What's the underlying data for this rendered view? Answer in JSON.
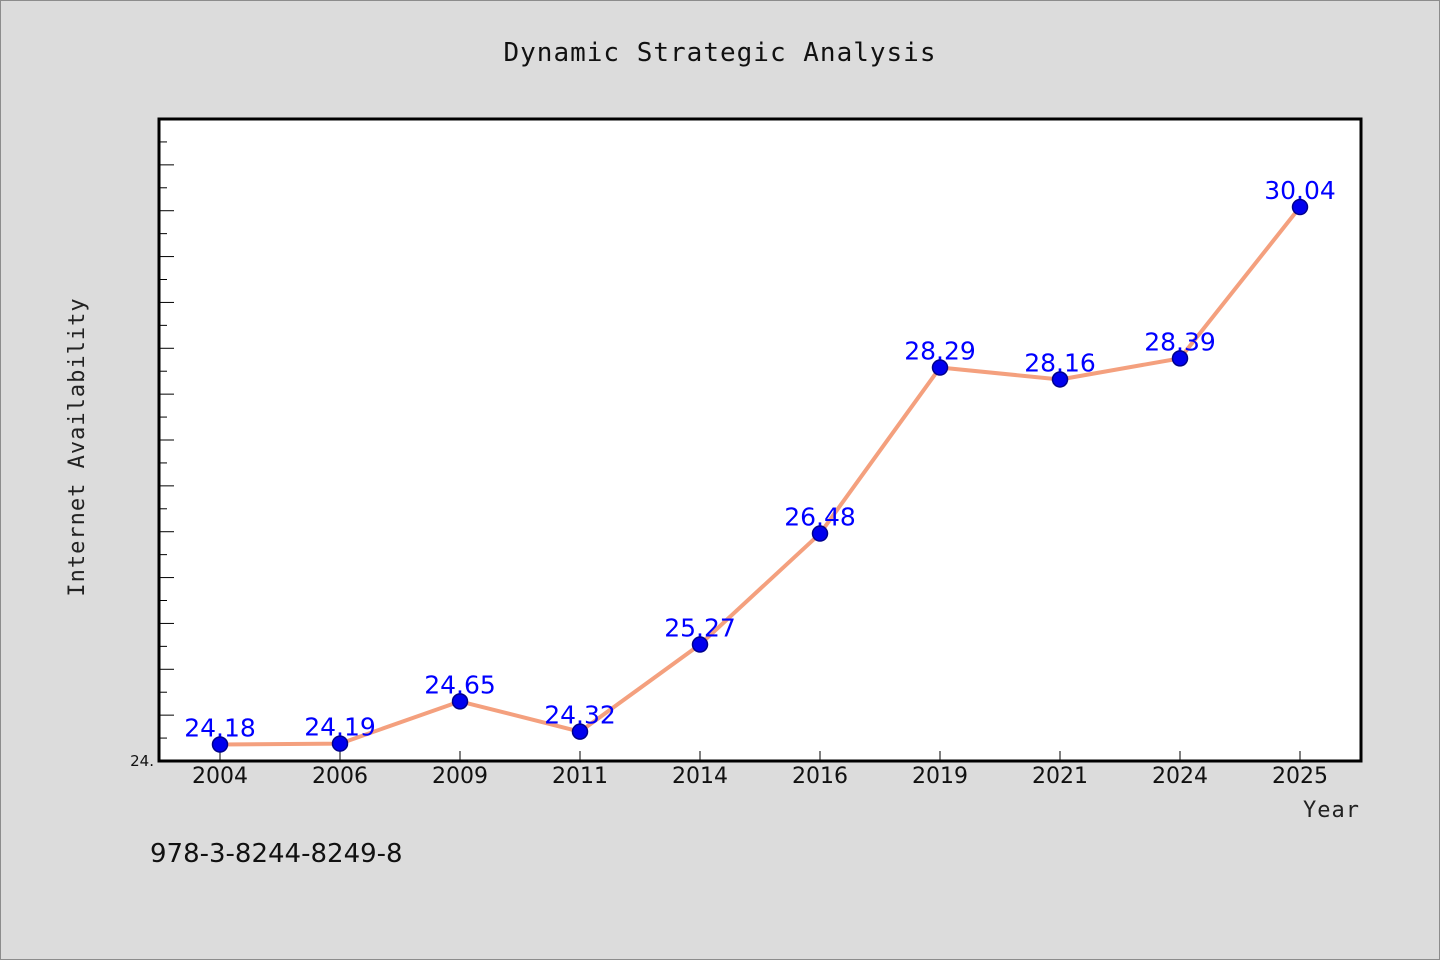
{
  "chart_data": {
    "type": "line",
    "title": "Dynamic Strategic Analysis",
    "xlabel": "Year",
    "ylabel": "Internet Availability",
    "categories": [
      "2004",
      "2006",
      "2009",
      "2011",
      "2014",
      "2016",
      "2019",
      "2021",
      "2024",
      "2025"
    ],
    "series": [
      {
        "values": [
          24.18,
          24.19,
          24.65,
          24.32,
          25.27,
          26.48,
          28.29,
          28.16,
          28.39,
          30.04
        ]
      }
    ],
    "data_labels": [
      "24.18",
      "24.19",
      "24.65",
      "24.32",
      "25.27",
      "26.48",
      "28.29",
      "28.16",
      "28.39",
      "30.04"
    ],
    "ylim": [
      24.0,
      31.0
    ],
    "ytick_label": "24.",
    "grid": false,
    "legend": "none",
    "colors": {
      "line": "#f4a07e",
      "marker": "#0000ee",
      "marker_edge": "#00008b",
      "data_label": "#0000ff",
      "plot_bg": "#ffffff",
      "page_bg": "#dcdcdc"
    }
  },
  "annotation": "978-3-8244-8249-8"
}
